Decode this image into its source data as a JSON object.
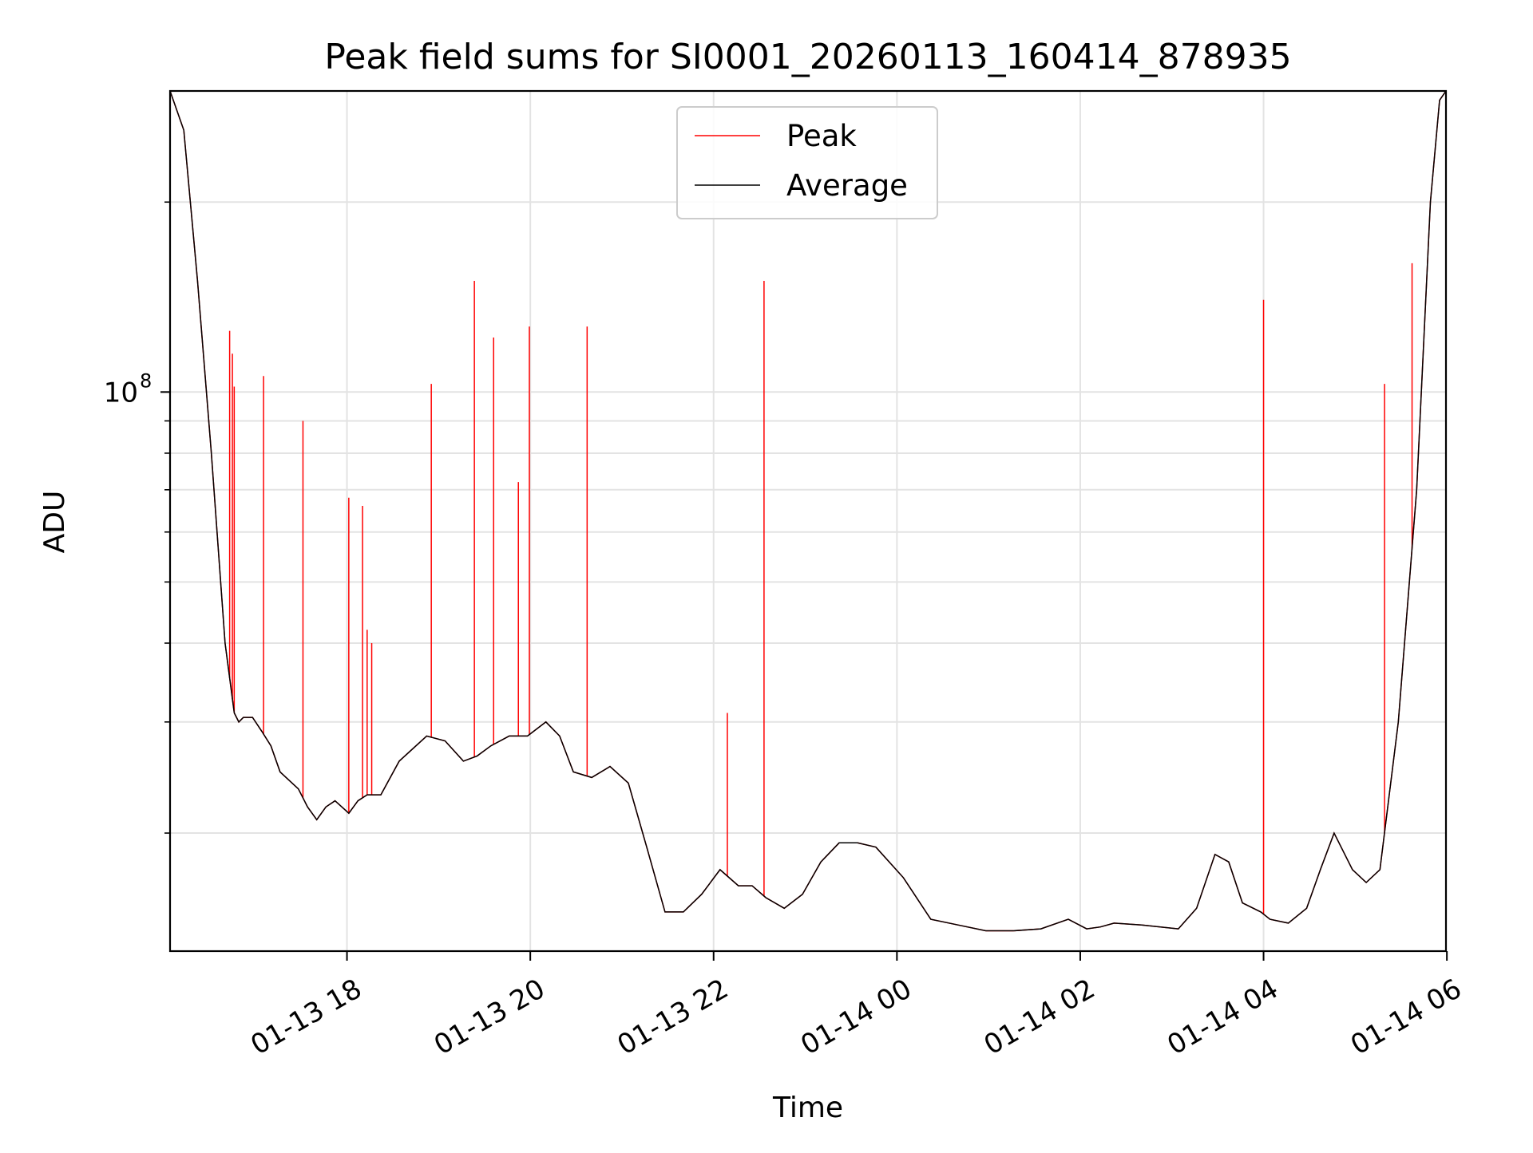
{
  "chart_data": {
    "type": "line",
    "title": "Peak field sums for SI0001_20260113_160414_878935",
    "xlabel": "Time",
    "ylabel": "ADU",
    "y_scale": "log",
    "ylim": [
      13000000,
      300000000
    ],
    "y_major_ticks": [
      {
        "value": 100000000,
        "base": "10",
        "exp": "8"
      }
    ],
    "y_minor_ticks": [
      20000000,
      30000000,
      40000000,
      50000000,
      60000000,
      70000000,
      80000000,
      90000000,
      200000000
    ],
    "x_axis": {
      "unit": "hours since 01-13 16:04",
      "range": [
        0,
        13.92
      ],
      "ticks": [
        {
          "hours": 1.93,
          "label": "01-13 18"
        },
        {
          "hours": 3.93,
          "label": "01-13 20"
        },
        {
          "hours": 5.93,
          "label": "01-13 22"
        },
        {
          "hours": 7.93,
          "label": "01-14 00"
        },
        {
          "hours": 9.93,
          "label": "01-14 02"
        },
        {
          "hours": 11.93,
          "label": "01-14 04"
        },
        {
          "hours": 13.93,
          "label": "01-14 06"
        }
      ]
    },
    "grid": true,
    "legend": {
      "position": "upper-center",
      "entries": [
        {
          "label": "Peak",
          "color": "#ff0000"
        },
        {
          "label": "Average",
          "color": "#000000"
        }
      ]
    },
    "series": [
      {
        "name": "Average",
        "color": "#000000",
        "x": [
          0,
          0.15,
          0.3,
          0.45,
          0.6,
          0.7,
          0.75,
          0.8,
          0.9,
          1.0,
          1.1,
          1.2,
          1.4,
          1.5,
          1.6,
          1.7,
          1.8,
          1.95,
          2.05,
          2.15,
          2.3,
          2.5,
          2.8,
          3.0,
          3.2,
          3.35,
          3.5,
          3.7,
          3.9,
          4.1,
          4.25,
          4.4,
          4.6,
          4.8,
          5.0,
          5.2,
          5.4,
          5.6,
          5.8,
          6.0,
          6.2,
          6.35,
          6.5,
          6.7,
          6.9,
          7.1,
          7.3,
          7.5,
          7.7,
          8.0,
          8.3,
          8.6,
          8.9,
          9.2,
          9.5,
          9.8,
          10.0,
          10.15,
          10.3,
          10.6,
          11.0,
          11.2,
          11.4,
          11.55,
          11.7,
          11.9,
          12.0,
          12.2,
          12.4,
          12.55,
          12.7,
          12.9,
          13.05,
          13.2,
          13.4,
          13.6,
          13.75,
          13.85,
          13.92
        ],
        "values": [
          300000000,
          260000000,
          150000000,
          80000000,
          40000000,
          31000000,
          30000000,
          30500000,
          30500000,
          29000000,
          27500000,
          25000000,
          23500000,
          22000000,
          21000000,
          22000000,
          22500000,
          21500000,
          22500000,
          23000000,
          23000000,
          26000000,
          28500000,
          28000000,
          26000000,
          26500000,
          27500000,
          28500000,
          28500000,
          30000000,
          28500000,
          25000000,
          24500000,
          25500000,
          24000000,
          19000000,
          15000000,
          15000000,
          16000000,
          17500000,
          16500000,
          16500000,
          15800000,
          15200000,
          16000000,
          18000000,
          19300000,
          19300000,
          19000000,
          17000000,
          14600000,
          14300000,
          14000000,
          14000000,
          14100000,
          14600000,
          14100000,
          14200000,
          14400000,
          14300000,
          14100000,
          15200000,
          18500000,
          18000000,
          15500000,
          15000000,
          14600000,
          14400000,
          15200000,
          17500000,
          20000000,
          17500000,
          16700000,
          17500000,
          30000000,
          70000000,
          200000000,
          290000000,
          300000000
        ]
      },
      {
        "name": "Peak",
        "color": "#ff0000",
        "spikes": [
          {
            "x": 0.65,
            "value": 125000000
          },
          {
            "x": 0.68,
            "value": 115000000
          },
          {
            "x": 0.7,
            "value": 102000000
          },
          {
            "x": 1.02,
            "value": 106000000
          },
          {
            "x": 1.45,
            "value": 90000000
          },
          {
            "x": 1.95,
            "value": 68000000
          },
          {
            "x": 2.1,
            "value": 66000000
          },
          {
            "x": 2.15,
            "value": 42000000
          },
          {
            "x": 2.2,
            "value": 40000000
          },
          {
            "x": 2.85,
            "value": 103000000
          },
          {
            "x": 3.32,
            "value": 150000000
          },
          {
            "x": 3.53,
            "value": 122000000
          },
          {
            "x": 3.8,
            "value": 72000000
          },
          {
            "x": 3.92,
            "value": 127000000
          },
          {
            "x": 4.55,
            "value": 127000000
          },
          {
            "x": 6.08,
            "value": 31000000
          },
          {
            "x": 6.48,
            "value": 150000000
          },
          {
            "x": 11.93,
            "value": 140000000
          },
          {
            "x": 13.25,
            "value": 103000000
          },
          {
            "x": 13.55,
            "value": 160000000
          }
        ]
      }
    ]
  }
}
